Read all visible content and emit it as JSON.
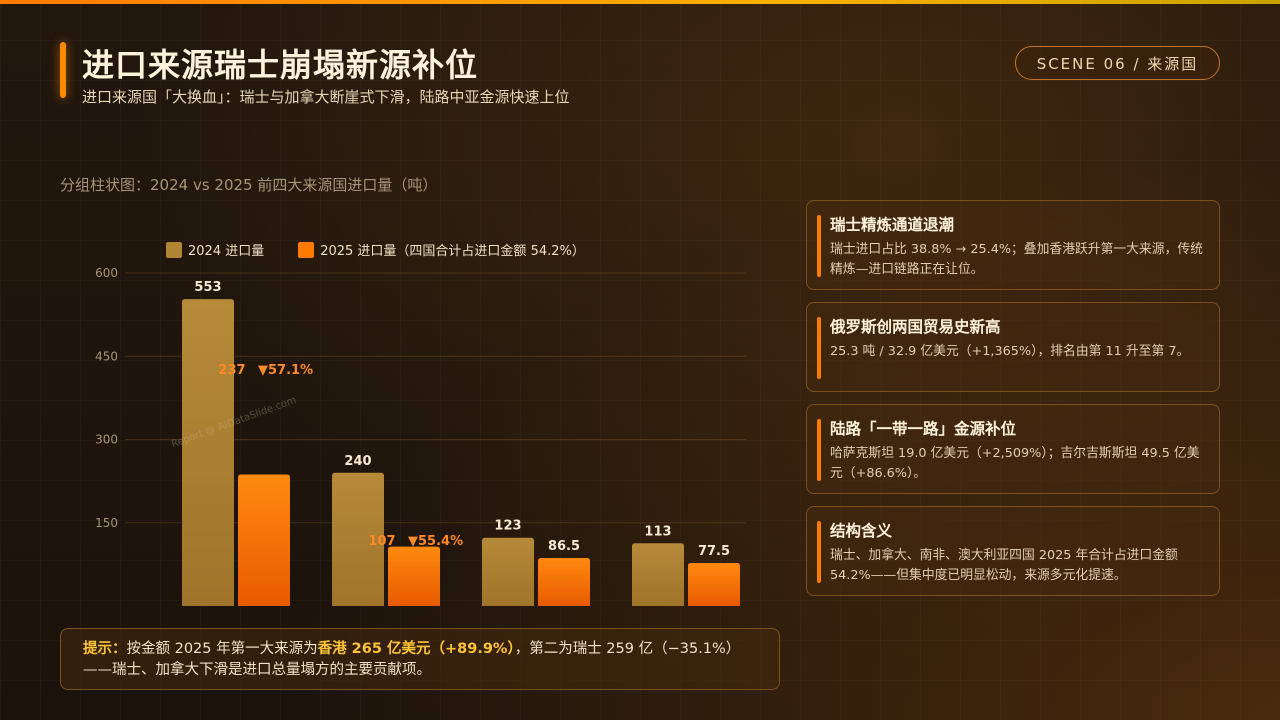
{
  "header": {
    "title": "进口来源瑞士崩塌新源补位",
    "subtitle": "进口来源国「大换血」：瑞士与加拿大断崖式下滑，陆路中亚金源快速上位",
    "scene_badge": "SCENE 06 / 来源国"
  },
  "chart_caption": "分组柱状图：2024 vs 2025 前四大来源国进口量（吨）",
  "watermark": "Report @ AIDataSlide.com",
  "colors": {
    "series_2024": "#b08433",
    "series_2025": "#ff7a00",
    "accent": "#ff8a00",
    "highlight": "#ffc43a"
  },
  "chart_data": {
    "type": "bar",
    "categories": [
      "",
      "",
      "",
      ""
    ],
    "series": [
      {
        "name": "2024 进口量",
        "values": [
          553,
          240,
          123,
          113
        ]
      },
      {
        "name": "2025 进口量（四国合计占进口金额 54.2%）",
        "values": [
          237,
          107,
          86.5,
          77.5
        ]
      }
    ],
    "data_labels": {
      "series_2024": [
        "553",
        "240",
        "123",
        "113"
      ],
      "series_2025": [
        "237",
        "107",
        "86.5",
        "77.5"
      ]
    },
    "change_labels": [
      "▼57.1%",
      "▼55.4%",
      "",
      ""
    ],
    "ylim": [
      0,
      600
    ],
    "yticks": [
      150,
      300,
      450,
      600
    ],
    "ytick_labels": [
      "150",
      "300",
      "450",
      "600"
    ],
    "grid": true,
    "legend_position": "top-left",
    "title": "",
    "xlabel": "",
    "ylabel": ""
  },
  "tip": {
    "label": "提示：",
    "text_before": "按金额 2025 年第一大来源为",
    "highlight": "香港 265 亿美元（+89.9%）",
    "text_after": "，第二为瑞士 259 亿（−35.1%）——瑞士、加拿大下滑是进口总量塌方的主要贡献项。"
  },
  "cards": [
    {
      "title": "瑞士精炼通道退潮",
      "body": "瑞士进口占比 38.8% → 25.4%；叠加香港跃升第一大来源，传统精炼—进口链路正在让位。"
    },
    {
      "title": "俄罗斯创两国贸易史新高",
      "body": "25.3 吨 / 32.9 亿美元（+1,365%），排名由第 11 升至第 7。"
    },
    {
      "title": "陆路「一带一路」金源补位",
      "body": "哈萨克斯坦 19.0 亿美元（+2,509%）；吉尔吉斯斯坦 49.5 亿美元（+86.6%）。"
    },
    {
      "title": "结构含义",
      "body": "瑞士、加拿大、南非、澳大利亚四国 2025 年合计占进口金额 54.2%——但集中度已明显松动，来源多元化提速。"
    }
  ]
}
